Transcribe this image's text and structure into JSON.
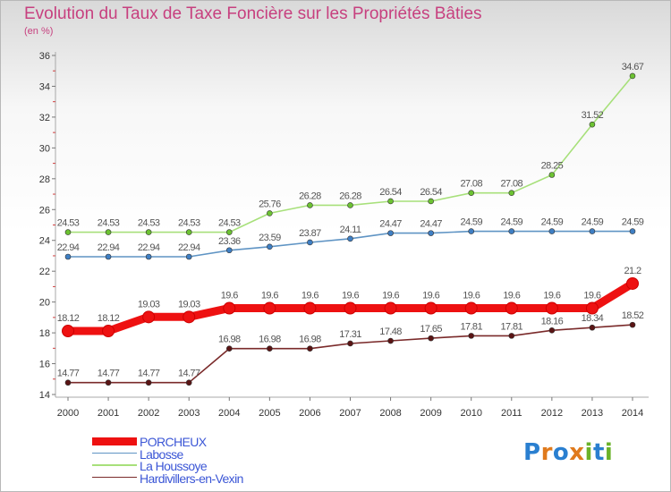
{
  "title": "Evolution du Taux de Taxe Foncière sur les Propriétés Bâties",
  "unit_label": "(en %)",
  "logo": {
    "letters": [
      "P",
      "r",
      "o",
      "x",
      "i",
      "t",
      "i"
    ],
    "colors": [
      "#2a7fd0",
      "#e07a1c",
      "#2a7fd0",
      "#e07a1c",
      "#6bb22a",
      "#2a7fd0",
      "#6bb22a"
    ]
  },
  "chart_data": {
    "type": "line",
    "title": "Evolution du Taux de Taxe Foncière sur les Propriétés Bâties",
    "xlabel": "",
    "ylabel": "(en %)",
    "x": [
      2000,
      2001,
      2002,
      2003,
      2004,
      2005,
      2006,
      2007,
      2008,
      2009,
      2010,
      2011,
      2012,
      2013,
      2014
    ],
    "ylim": [
      14,
      36
    ],
    "yticks": [
      14,
      16,
      18,
      20,
      22,
      24,
      26,
      28,
      30,
      32,
      34,
      36
    ],
    "grid": false,
    "legend_position": "bottom-left",
    "series": [
      {
        "name": "PORCHEUX",
        "color": "#ee1111",
        "marker_color": "#ee1111",
        "values": [
          18.12,
          18.12,
          19.03,
          19.03,
          19.6,
          19.6,
          19.6,
          19.6,
          19.6,
          19.6,
          19.6,
          19.6,
          19.6,
          19.6,
          21.2
        ],
        "labels": [
          "18.12",
          "18.12",
          "19.03",
          "19.03",
          "19.6",
          "19.6",
          "19.6",
          "19.6",
          "19.6",
          "19.6",
          "19.6",
          "19.6",
          "19.6",
          "19.6",
          "21.2"
        ]
      },
      {
        "name": "Labosse",
        "color": "#5f94c4",
        "marker_color": "#3f7fc4",
        "values": [
          22.94,
          22.94,
          22.94,
          22.94,
          23.36,
          23.59,
          23.87,
          24.11,
          24.47,
          24.47,
          24.59,
          24.59,
          24.59,
          24.59,
          24.59
        ],
        "labels": [
          "22.94",
          "22.94",
          "22.94",
          "22.94",
          "23.36",
          "23.59",
          "23.87",
          "24.11",
          "24.47",
          "24.47",
          "24.59",
          "24.59",
          "24.59",
          "24.59",
          "24.59"
        ]
      },
      {
        "name": "La Houssoye",
        "color": "#a7e07a",
        "marker_color": "#6cc232",
        "values": [
          24.53,
          24.53,
          24.53,
          24.53,
          24.53,
          25.76,
          26.28,
          26.28,
          26.54,
          26.54,
          27.08,
          27.08,
          28.25,
          31.52,
          34.67
        ],
        "labels": [
          "24.53",
          "24.53",
          "24.53",
          "24.53",
          "24.53",
          "25.76",
          "26.28",
          "26.28",
          "26.54",
          "26.54",
          "27.08",
          "27.08",
          "28.25",
          "31.52",
          "34.67"
        ]
      },
      {
        "name": "Hardivillers-en-Vexin",
        "color": "#7a2a2a",
        "marker_color": "#5a1414",
        "values": [
          14.77,
          14.77,
          14.77,
          14.77,
          16.98,
          16.98,
          16.98,
          17.31,
          17.48,
          17.65,
          17.81,
          17.81,
          18.16,
          18.34,
          18.52
        ],
        "labels": [
          "14.77",
          "14.77",
          "14.77",
          "14.77",
          "16.98",
          "16.98",
          "16.98",
          "17.31",
          "17.48",
          "17.65",
          "17.81",
          "17.81",
          "18.16",
          "18.34",
          "18.52"
        ]
      }
    ]
  }
}
